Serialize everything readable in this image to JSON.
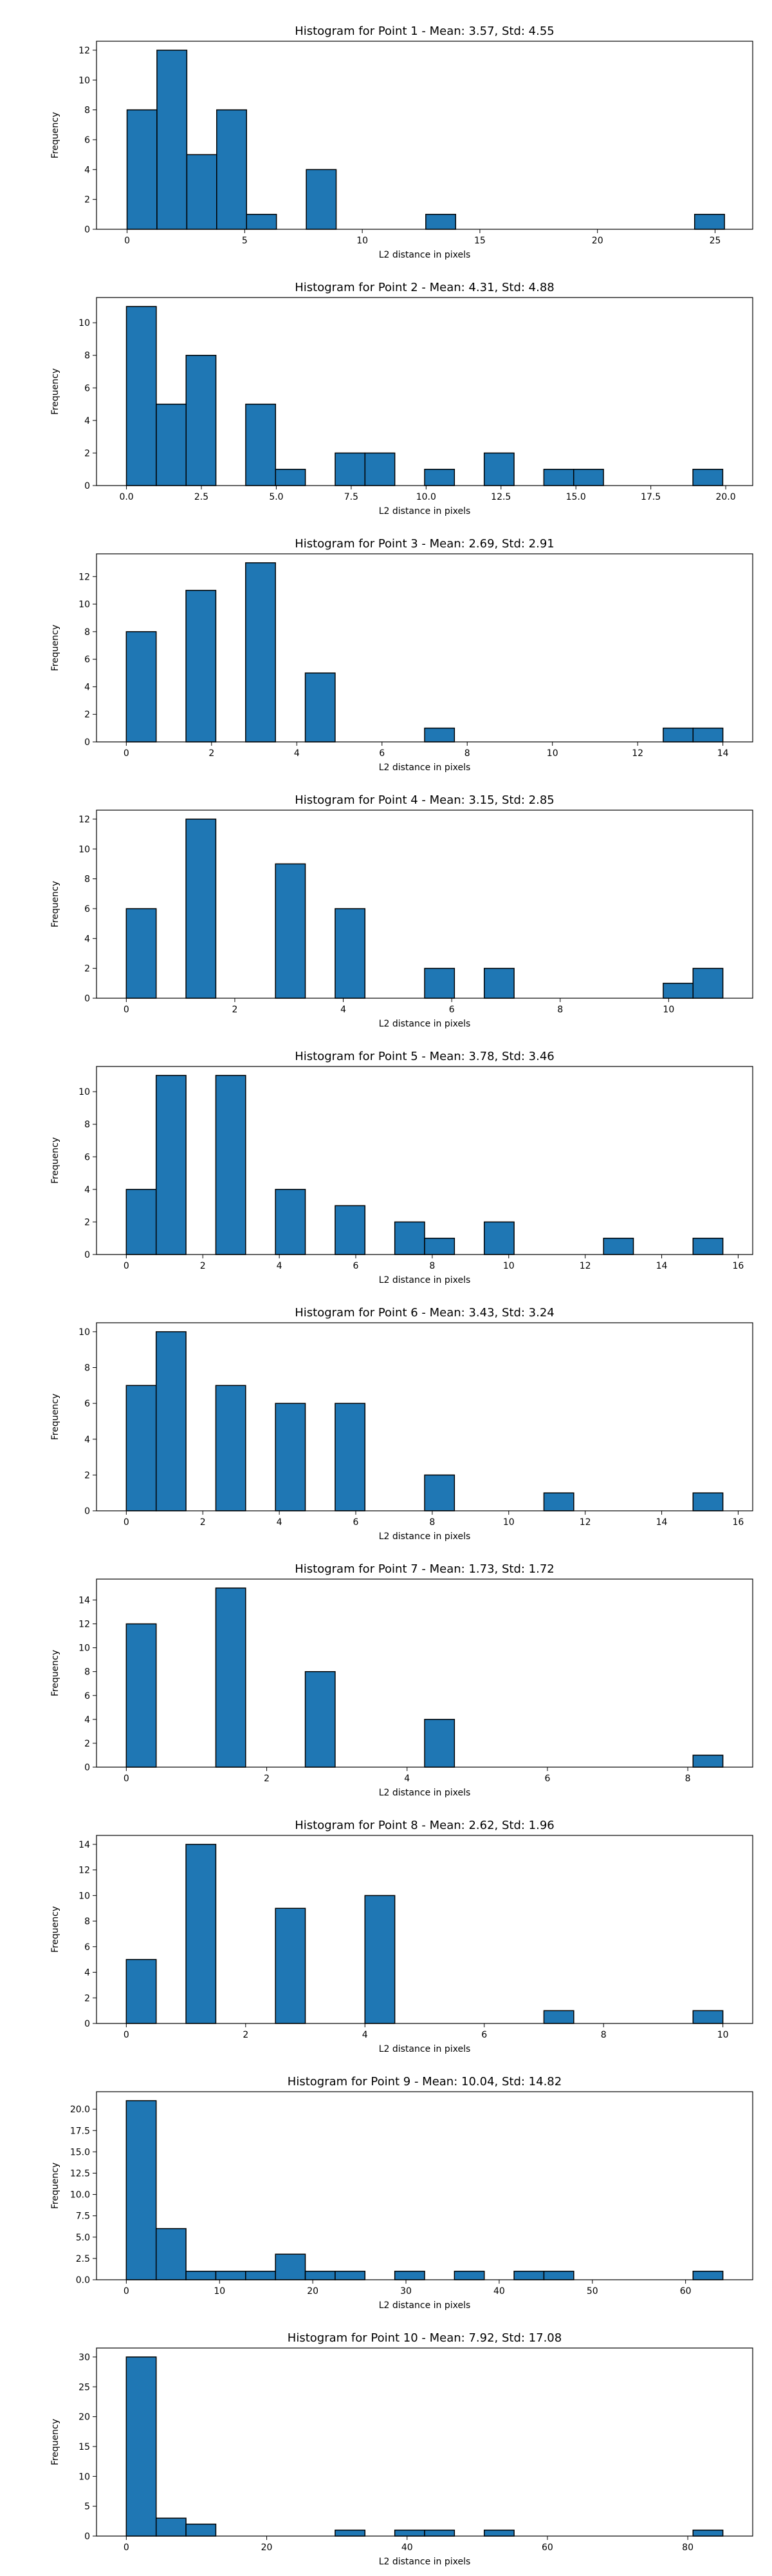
{
  "figure": {
    "background": "#ffffff",
    "bar_color": "#1f77b4",
    "edge_color": "#000000"
  },
  "chart_data": [
    {
      "type": "bar",
      "title": "Histogram for Point 1 - Mean: 3.57, Std: 4.55",
      "xlabel": "L2 distance in pixels",
      "ylabel": "Frequency",
      "xlim": [
        -1.3,
        26.6
      ],
      "ylim": [
        0,
        12.6
      ],
      "xticks": [
        0,
        5,
        10,
        15,
        20,
        25
      ],
      "xtick_labels": [
        "0",
        "5",
        "10",
        "15",
        "20",
        "25"
      ],
      "yticks": [
        0,
        2,
        4,
        6,
        8,
        10,
        12
      ],
      "ytick_labels": [
        "0",
        "2",
        "4",
        "6",
        "8",
        "10",
        "12"
      ],
      "bin_edges": [
        0,
        1.27,
        2.54,
        3.81,
        5.08,
        6.35,
        7.62,
        8.89,
        10.16,
        11.43,
        12.7,
        13.97,
        15.24,
        16.51,
        17.78,
        19.05,
        20.32,
        21.59,
        22.86,
        24.13,
        25.4
      ],
      "values": [
        8,
        12,
        5,
        8,
        1,
        0,
        4,
        0,
        0,
        0,
        1,
        0,
        0,
        0,
        0,
        0,
        0,
        0,
        0,
        1
      ],
      "grid": false,
      "legend": false
    },
    {
      "type": "bar",
      "title": "Histogram for Point 2 - Mean: 4.31, Std: 4.88",
      "xlabel": "L2 distance in pixels",
      "ylabel": "Frequency",
      "xlim": [
        -1.0,
        20.9
      ],
      "ylim": [
        0,
        11.55
      ],
      "xticks": [
        0,
        2.5,
        5,
        7.5,
        10,
        12.5,
        15,
        17.5,
        20
      ],
      "xtick_labels": [
        "0.0",
        "2.5",
        "5.0",
        "7.5",
        "10.0",
        "12.5",
        "15.0",
        "17.5",
        "20.0"
      ],
      "yticks": [
        0,
        2,
        4,
        6,
        8,
        10
      ],
      "ytick_labels": [
        "0",
        "2",
        "4",
        "6",
        "8",
        "10"
      ],
      "bin_edges": [
        0,
        0.995,
        1.99,
        2.985,
        3.98,
        4.975,
        5.97,
        6.965,
        7.96,
        8.955,
        9.95,
        10.945,
        11.94,
        12.935,
        13.93,
        14.925,
        15.92,
        16.915,
        17.91,
        18.905,
        19.9
      ],
      "values": [
        11,
        5,
        8,
        0,
        5,
        1,
        0,
        2,
        2,
        0,
        1,
        0,
        2,
        0,
        1,
        1,
        0,
        0,
        0,
        1
      ],
      "grid": false,
      "legend": false
    },
    {
      "type": "bar",
      "title": "Histogram for Point 3 - Mean: 2.69, Std: 2.91",
      "xlabel": "L2 distance in pixels",
      "ylabel": "Frequency",
      "xlim": [
        -0.7,
        14.7
      ],
      "ylim": [
        0,
        13.65
      ],
      "xticks": [
        0,
        2,
        4,
        6,
        8,
        10,
        12,
        14
      ],
      "xtick_labels": [
        "0",
        "2",
        "4",
        "6",
        "8",
        "10",
        "12",
        "14"
      ],
      "yticks": [
        0,
        2,
        4,
        6,
        8,
        10,
        12
      ],
      "ytick_labels": [
        "0",
        "2",
        "4",
        "6",
        "8",
        "10",
        "12"
      ],
      "bin_edges": [
        0,
        0.7,
        1.4,
        2.1,
        2.8,
        3.5,
        4.2,
        4.9,
        5.6,
        6.3,
        7.0,
        7.7,
        8.4,
        9.1,
        9.8,
        10.5,
        11.2,
        11.9,
        12.6,
        13.3,
        14.0
      ],
      "values": [
        8,
        0,
        11,
        0,
        13,
        0,
        5,
        0,
        0,
        0,
        1,
        0,
        0,
        0,
        0,
        0,
        0,
        0,
        1,
        1
      ],
      "grid": false,
      "legend": false
    },
    {
      "type": "bar",
      "title": "Histogram for Point 4 - Mean: 3.15, Std: 2.85",
      "xlabel": "L2 distance in pixels",
      "ylabel": "Frequency",
      "xlim": [
        -0.55,
        11.55
      ],
      "ylim": [
        0,
        12.6
      ],
      "xticks": [
        0,
        2,
        4,
        6,
        8,
        10
      ],
      "xtick_labels": [
        "0",
        "2",
        "4",
        "6",
        "8",
        "10"
      ],
      "yticks": [
        0,
        2,
        4,
        6,
        8,
        10,
        12
      ],
      "ytick_labels": [
        "0",
        "2",
        "4",
        "6",
        "8",
        "10",
        "12"
      ],
      "bin_edges": [
        0,
        0.55,
        1.1,
        1.65,
        2.2,
        2.75,
        3.3,
        3.85,
        4.4,
        4.95,
        5.5,
        6.05,
        6.6,
        7.15,
        7.7,
        8.25,
        8.8,
        9.35,
        9.9,
        10.45,
        11.0
      ],
      "values": [
        6,
        0,
        12,
        0,
        0,
        9,
        0,
        6,
        0,
        0,
        2,
        0,
        2,
        0,
        0,
        0,
        0,
        0,
        1,
        2
      ],
      "grid": false,
      "legend": false
    },
    {
      "type": "bar",
      "title": "Histogram for Point 5 - Mean: 3.78, Std: 3.46",
      "xlabel": "L2 distance in pixels",
      "ylabel": "Frequency",
      "xlim": [
        -0.78,
        16.38
      ],
      "ylim": [
        0,
        11.55
      ],
      "xticks": [
        0,
        2,
        4,
        6,
        8,
        10,
        12,
        14,
        16
      ],
      "xtick_labels": [
        "0",
        "2",
        "4",
        "6",
        "8",
        "10",
        "12",
        "14",
        "16"
      ],
      "yticks": [
        0,
        2,
        4,
        6,
        8,
        10
      ],
      "ytick_labels": [
        "0",
        "2",
        "4",
        "6",
        "8",
        "10"
      ],
      "bin_edges": [
        0,
        0.78,
        1.56,
        2.34,
        3.12,
        3.9,
        4.68,
        5.46,
        6.24,
        7.02,
        7.8,
        8.58,
        9.36,
        10.14,
        10.92,
        11.7,
        12.48,
        13.26,
        14.04,
        14.82,
        15.6
      ],
      "values": [
        4,
        11,
        0,
        11,
        0,
        4,
        0,
        3,
        0,
        2,
        1,
        0,
        2,
        0,
        0,
        0,
        1,
        0,
        0,
        1
      ],
      "grid": false,
      "legend": false
    },
    {
      "type": "bar",
      "title": "Histogram for Point 6 - Mean: 3.43, Std: 3.24",
      "xlabel": "L2 distance in pixels",
      "ylabel": "Frequency",
      "xlim": [
        -0.78,
        16.38
      ],
      "ylim": [
        0,
        10.5
      ],
      "xticks": [
        0,
        2,
        4,
        6,
        8,
        10,
        12,
        14,
        16
      ],
      "xtick_labels": [
        "0",
        "2",
        "4",
        "6",
        "8",
        "10",
        "12",
        "14",
        "16"
      ],
      "yticks": [
        0,
        2,
        4,
        6,
        8,
        10
      ],
      "ytick_labels": [
        "0",
        "2",
        "4",
        "6",
        "8",
        "10"
      ],
      "bin_edges": [
        0,
        0.78,
        1.56,
        2.34,
        3.12,
        3.9,
        4.68,
        5.46,
        6.24,
        7.02,
        7.8,
        8.58,
        9.36,
        10.14,
        10.92,
        11.7,
        12.48,
        13.26,
        14.04,
        14.82,
        15.6
      ],
      "values": [
        7,
        10,
        0,
        7,
        0,
        6,
        0,
        6,
        0,
        0,
        2,
        0,
        0,
        0,
        1,
        0,
        0,
        0,
        0,
        1
      ],
      "grid": false,
      "legend": false
    },
    {
      "type": "bar",
      "title": "Histogram for Point 7 - Mean: 1.73, Std: 1.72",
      "xlabel": "L2 distance in pixels",
      "ylabel": "Frequency",
      "xlim": [
        -0.425,
        8.925
      ],
      "ylim": [
        0,
        15.75
      ],
      "xticks": [
        0,
        2,
        4,
        6,
        8
      ],
      "xtick_labels": [
        "0",
        "2",
        "4",
        "6",
        "8"
      ],
      "yticks": [
        0,
        2,
        4,
        6,
        8,
        10,
        12,
        14
      ],
      "ytick_labels": [
        "0",
        "2",
        "4",
        "6",
        "8",
        "10",
        "12",
        "14"
      ],
      "bin_edges": [
        0,
        0.425,
        0.85,
        1.275,
        1.7,
        2.125,
        2.55,
        2.975,
        3.4,
        3.825,
        4.25,
        4.675,
        5.1,
        5.525,
        5.95,
        6.375,
        6.8,
        7.225,
        7.65,
        8.075,
        8.5
      ],
      "values": [
        12,
        0,
        0,
        15,
        0,
        0,
        8,
        0,
        0,
        0,
        4,
        0,
        0,
        0,
        0,
        0,
        0,
        0,
        0,
        1
      ],
      "grid": false,
      "legend": false
    },
    {
      "type": "bar",
      "title": "Histogram for Point 8 - Mean: 2.62, Std: 1.96",
      "xlabel": "L2 distance in pixels",
      "ylabel": "Frequency",
      "xlim": [
        -0.5,
        10.5
      ],
      "ylim": [
        0,
        14.7
      ],
      "xticks": [
        0,
        2,
        4,
        6,
        8,
        10
      ],
      "xtick_labels": [
        "0",
        "2",
        "4",
        "6",
        "8",
        "10"
      ],
      "yticks": [
        0,
        2,
        4,
        6,
        8,
        10,
        12,
        14
      ],
      "ytick_labels": [
        "0",
        "2",
        "4",
        "6",
        "8",
        "10",
        "12",
        "14"
      ],
      "bin_edges": [
        0,
        0.5,
        1.0,
        1.5,
        2.0,
        2.5,
        3.0,
        3.5,
        4.0,
        4.5,
        5.0,
        5.5,
        6.0,
        6.5,
        7.0,
        7.5,
        8.0,
        8.5,
        9.0,
        9.5,
        10.0
      ],
      "values": [
        5,
        0,
        14,
        0,
        0,
        9,
        0,
        0,
        10,
        0,
        0,
        0,
        0,
        0,
        1,
        0,
        0,
        0,
        0,
        1
      ],
      "grid": false,
      "legend": false
    },
    {
      "type": "bar",
      "title": "Histogram for Point 9 - Mean: 10.04, Std: 14.82",
      "xlabel": "L2 distance in pixels",
      "ylabel": "Frequency",
      "xlim": [
        -3.2,
        67.2
      ],
      "ylim": [
        0,
        22.05
      ],
      "xticks": [
        0,
        10,
        20,
        30,
        40,
        50,
        60
      ],
      "xtick_labels": [
        "0",
        "10",
        "20",
        "30",
        "40",
        "50",
        "60"
      ],
      "yticks": [
        0,
        2.5,
        5,
        7.5,
        10,
        12.5,
        15,
        17.5,
        20
      ],
      "ytick_labels": [
        "0.0",
        "2.5",
        "5.0",
        "7.5",
        "10.0",
        "12.5",
        "15.0",
        "17.5",
        "20.0"
      ],
      "bin_edges": [
        0,
        3.2,
        6.4,
        9.6,
        12.8,
        16.0,
        19.2,
        22.4,
        25.6,
        28.8,
        32.0,
        35.2,
        38.4,
        41.6,
        44.8,
        48.0,
        51.2,
        54.4,
        57.6,
        60.8,
        64.0
      ],
      "values": [
        21,
        6,
        1,
        1,
        1,
        3,
        1,
        1,
        0,
        1,
        0,
        1,
        0,
        1,
        1,
        0,
        0,
        0,
        0,
        1
      ],
      "grid": false,
      "legend": false
    },
    {
      "type": "bar",
      "title": "Histogram for Point 10 - Mean: 7.92, Std: 17.08",
      "xlabel": "L2 distance in pixels",
      "ylabel": "Frequency",
      "xlim": [
        -4.25,
        89.25
      ],
      "ylim": [
        0,
        31.5
      ],
      "xticks": [
        0,
        20,
        40,
        60,
        80
      ],
      "xtick_labels": [
        "0",
        "20",
        "40",
        "60",
        "80"
      ],
      "yticks": [
        0,
        5,
        10,
        15,
        20,
        25,
        30
      ],
      "ytick_labels": [
        "0",
        "5",
        "10",
        "15",
        "20",
        "25",
        "30"
      ],
      "bin_edges": [
        0,
        4.25,
        8.5,
        12.75,
        17.0,
        21.25,
        25.5,
        29.75,
        34.0,
        38.25,
        42.5,
        46.75,
        51.0,
        55.25,
        59.5,
        63.75,
        68.0,
        72.25,
        76.5,
        80.75,
        85.0
      ],
      "values": [
        30,
        3,
        2,
        0,
        0,
        0,
        0,
        1,
        0,
        1,
        1,
        0,
        1,
        0,
        0,
        0,
        0,
        0,
        0,
        1
      ],
      "grid": false,
      "legend": false
    }
  ]
}
